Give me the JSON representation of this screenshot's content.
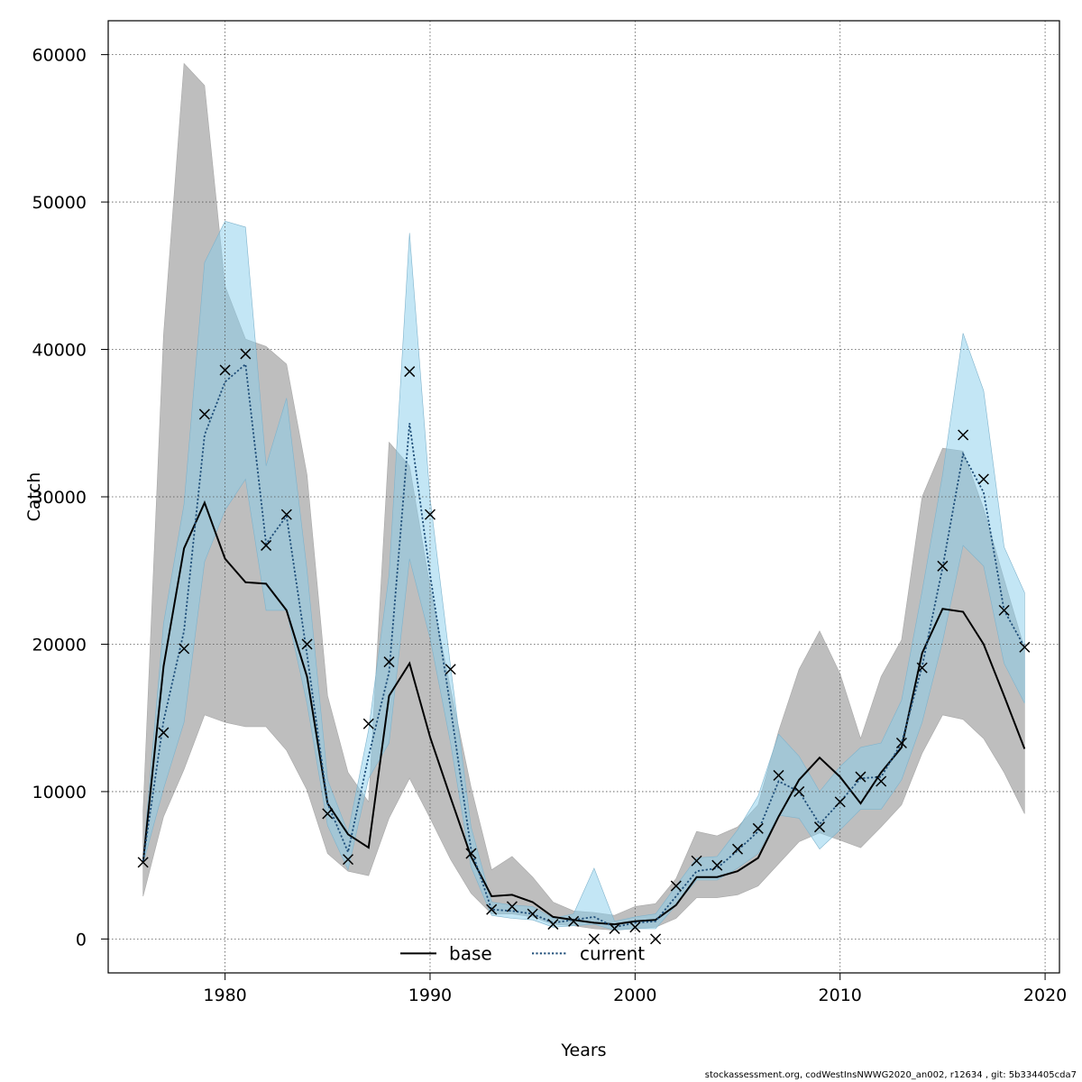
{
  "chart_data": {
    "type": "line",
    "title": "",
    "xlabel": "Years",
    "ylabel": "Catch",
    "xlim": [
      1974.3,
      2020.7
    ],
    "ylim": [
      -2300,
      62300
    ],
    "xticks": [
      1980,
      1990,
      2000,
      2010,
      2020
    ],
    "yticks": [
      0,
      10000,
      20000,
      30000,
      40000,
      50000,
      60000
    ],
    "grid": true,
    "legend_position": "bottom-center",
    "x": [
      1976,
      1977,
      1978,
      1979,
      1980,
      1981,
      1982,
      1983,
      1984,
      1985,
      1986,
      1987,
      1988,
      1989,
      1990,
      1991,
      1992,
      1993,
      1994,
      1995,
      1996,
      1997,
      1998,
      1999,
      2000,
      2001,
      2002,
      2003,
      2004,
      2005,
      2006,
      2007,
      2008,
      2009,
      2010,
      2011,
      2012,
      2013,
      2014,
      2015,
      2016,
      2017,
      2018,
      2019
    ],
    "series": [
      {
        "name": "base",
        "color": "#000000",
        "band_color": "#bebebe",
        "estimate": [
          5200,
          18500,
          26500,
          29600,
          25800,
          24200,
          24100,
          22300,
          17800,
          9200,
          7100,
          6200,
          16500,
          18700,
          13700,
          9600,
          5600,
          2900,
          3000,
          2500,
          1500,
          1300,
          1100,
          1000,
          1200,
          1300,
          2300,
          4200,
          4200,
          4600,
          5500,
          8300,
          10800,
          12300,
          11000,
          9200,
          11300,
          13000,
          19400,
          22400,
          22200,
          20000,
          16500,
          12900
        ],
        "lower": [
          2900,
          8300,
          11500,
          15200,
          14700,
          14400,
          14400,
          12800,
          10100,
          5800,
          4600,
          4300,
          8200,
          10900,
          8200,
          5400,
          3100,
          1700,
          1700,
          1500,
          1000,
          900,
          700,
          600,
          700,
          800,
          1400,
          2800,
          2800,
          3000,
          3600,
          5100,
          6600,
          7200,
          6700,
          6200,
          7600,
          9100,
          12600,
          15200,
          14900,
          13600,
          11300,
          8500
        ],
        "upper": [
          8700,
          41000,
          59400,
          57900,
          44300,
          40700,
          40200,
          39000,
          31500,
          16500,
          11300,
          9300,
          33700,
          32100,
          23900,
          17000,
          10300,
          4700,
          5600,
          4200,
          2500,
          1900,
          1800,
          1600,
          2200,
          2400,
          4100,
          7300,
          7000,
          7600,
          9100,
          14100,
          18300,
          20900,
          18000,
          13600,
          17800,
          20300,
          30000,
          33300,
          33100,
          29200,
          24400,
          19700
        ]
      },
      {
        "name": "current",
        "color": "#1f4e79",
        "band_color": "#87ceeb",
        "estimate": [
          5300,
          14800,
          20900,
          34200,
          37800,
          39000,
          26800,
          28700,
          19300,
          9200,
          5900,
          12400,
          18100,
          35000,
          24700,
          15700,
          6100,
          2000,
          1900,
          1700,
          1100,
          1300,
          1500,
          800,
          1100,
          1200,
          2900,
          4600,
          4800,
          6000,
          7300,
          10700,
          10000,
          7800,
          9300,
          10900,
          11000,
          13300,
          18500,
          25200,
          32900,
          30300,
          22300,
          19800
        ],
        "lower": [
          5100,
          10200,
          14700,
          25600,
          29100,
          31200,
          22300,
          22300,
          16000,
          7700,
          4700,
          10900,
          13300,
          25800,
          20400,
          13300,
          4900,
          1600,
          1400,
          1300,
          800,
          900,
          1000,
          600,
          700,
          700,
          2300,
          4000,
          4000,
          4800,
          5800,
          8400,
          8200,
          6100,
          7400,
          8800,
          8800,
          10800,
          14700,
          20200,
          26700,
          25300,
          18700,
          16000
        ],
        "upper": [
          5500,
          21400,
          29500,
          45900,
          48700,
          48300,
          32100,
          36700,
          25000,
          10800,
          7200,
          14200,
          24700,
          47900,
          29900,
          18500,
          7600,
          2500,
          2300,
          2200,
          1400,
          1700,
          4800,
          1200,
          1500,
          1700,
          3600,
          5500,
          5600,
          7400,
          9700,
          13900,
          12400,
          10000,
          11700,
          13000,
          13300,
          16200,
          23600,
          31500,
          41100,
          37200,
          26600,
          23500
        ]
      }
    ],
    "observations": {
      "name": "observed catch",
      "marker": "x",
      "values": [
        5200,
        14000,
        19700,
        35600,
        38600,
        39700,
        26700,
        28800,
        20000,
        8500,
        5400,
        14600,
        18800,
        38500,
        28800,
        18300,
        5800,
        2000,
        2200,
        1700,
        1000,
        1200,
        0,
        700,
        800,
        0,
        3600,
        5300,
        5000,
        6100,
        7500,
        11100,
        10000,
        7600,
        9300,
        11000,
        10700,
        13300,
        18400,
        25300,
        34200,
        31200,
        22300,
        19800
      ]
    }
  },
  "footer": {
    "credit": "stockassessment.org, codWestInsNWWG2020_an002, r12634 , git: 5b334405cda7"
  }
}
